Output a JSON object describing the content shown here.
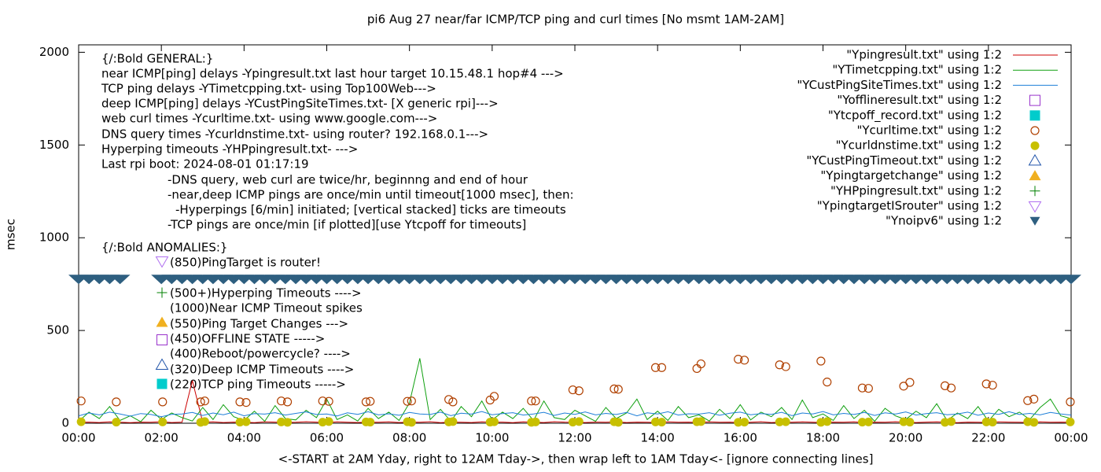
{
  "chart_data": {
    "type": "line",
    "title": "pi6 Aug 27  near/far ICMP/TCP ping and curl times [No msmt 1AM-2AM]",
    "xlabel": "<-START at 2AM Yday, right to 12AM Tday->, then wrap left to 1AM Tday<- [ignore connecting lines]",
    "ylabel": "msec",
    "legend": "upper right",
    "xlim": [
      0,
      24
    ],
    "ylim": [
      0,
      2040
    ],
    "yticks": [
      0,
      500,
      1000,
      1500,
      2000
    ],
    "xticks": [
      {
        "value": 0,
        "label": "00:00"
      },
      {
        "value": 2,
        "label": "02:00"
      },
      {
        "value": 4,
        "label": "04:00"
      },
      {
        "value": 6,
        "label": "06:00"
      },
      {
        "value": 8,
        "label": "08:00"
      },
      {
        "value": 10,
        "label": "10:00"
      },
      {
        "value": 12,
        "label": "12:00"
      },
      {
        "value": 14,
        "label": "14:00"
      },
      {
        "value": 16,
        "label": "16:00"
      },
      {
        "value": 18,
        "label": "18:00"
      },
      {
        "value": 20,
        "label": "20:00"
      },
      {
        "value": 22,
        "label": "22:00"
      },
      {
        "value": 24,
        "label": "00:00"
      }
    ],
    "annotations": [
      "{/:Bold GENERAL:}",
      "near ICMP[ping] delays -Ypingresult.txt last hour target 10.15.48.1 hop#4 --->",
      "TCP ping delays -YTimetcpping.txt- using Top100Web--->",
      "deep ICMP[ping] delays -YCustPingSiteTimes.txt- [X generic rpi]--->",
      "web curl times -Ycurltime.txt- using www.google.com--->",
      "DNS query times -Ycurldnstime.txt- using router? 192.168.0.1--->",
      "Hyperping timeouts -YHPpingresult.txt- --->",
      "Last rpi boot: 2024-08-01 01:17:19",
      "-DNS query, web curl are twice/hr, beginnng and end of hour",
      "-near,deep ICMP pings are once/min until timeout[1000 msec], then:",
      "-Hyperpings [6/min] initiated; [vertical stacked] ticks are timeouts",
      "-TCP pings are once/min [if plotted][use Ytcpoff for timeouts]",
      "{/:Bold ANOMALIES:}",
      "(850)PingTarget is router!",
      "(500+)Hyperping Timeouts ---->",
      "(1000)Near ICMP Timeout spikes",
      "(550)Ping Target Changes --->",
      "(450)OFFLINE STATE ----->",
      "(400)Reboot/powercycle? ---->",
      "(320)Deep ICMP Timeouts ---->",
      "(220)TCP ping Timeouts ----->"
    ],
    "x": [
      0,
      0.25,
      0.5,
      0.75,
      1,
      1.25,
      1.5,
      1.75,
      2,
      2.25,
      2.5,
      2.75,
      3,
      3.25,
      3.5,
      3.75,
      4,
      4.25,
      4.5,
      4.75,
      5,
      5.25,
      5.5,
      5.75,
      6,
      6.25,
      6.5,
      6.75,
      7,
      7.25,
      7.5,
      7.75,
      8,
      8.25,
      8.5,
      8.75,
      9,
      9.25,
      9.5,
      9.75,
      10,
      10.25,
      10.5,
      10.75,
      11,
      11.25,
      11.5,
      11.75,
      12,
      12.25,
      12.5,
      12.75,
      13,
      13.25,
      13.5,
      13.75,
      14,
      14.25,
      14.5,
      14.75,
      15,
      15.25,
      15.5,
      15.75,
      16,
      16.25,
      16.5,
      16.75,
      17,
      17.25,
      17.5,
      17.75,
      18,
      18.25,
      18.5,
      18.75,
      19,
      19.25,
      19.5,
      19.75,
      20,
      20.25,
      20.5,
      20.75,
      21,
      21.25,
      21.5,
      21.75,
      22,
      22.25,
      22.5,
      22.75,
      23,
      23.25,
      23.5,
      23.75,
      24
    ],
    "series": [
      {
        "name": "\"Ypingresult.txt\" using 1:2",
        "color": "#cc0000",
        "marker": "line",
        "values": [
          5,
          6,
          4,
          7,
          5,
          3,
          6,
          5,
          8,
          4,
          6,
          230,
          5,
          7,
          4,
          6,
          5,
          3,
          7,
          6,
          4,
          5,
          8,
          6,
          3,
          7,
          5,
          4,
          6,
          5,
          7,
          4,
          6,
          5,
          8,
          3,
          6,
          5,
          4,
          7,
          5,
          6,
          3,
          7,
          5,
          4,
          8,
          6,
          5,
          4,
          6,
          5,
          7,
          4,
          6,
          5,
          3,
          7,
          5,
          6,
          4,
          7,
          5,
          6,
          3,
          5,
          8,
          4,
          6,
          5,
          7,
          5,
          4,
          6,
          5,
          7,
          3,
          6,
          5,
          8,
          5,
          4,
          6,
          7,
          5,
          3,
          6,
          5,
          4,
          7,
          6,
          5,
          4,
          7,
          5,
          6,
          5
        ]
      },
      {
        "name": "\"YTimetcpping.txt\" using 1:2",
        "color": "#10a010",
        "marker": "line",
        "values": [
          10,
          60,
          25,
          90,
          15,
          40,
          8,
          70,
          20,
          55,
          30,
          12,
          85,
          20,
          100,
          35,
          15,
          65,
          10,
          95,
          25,
          18,
          70,
          30,
          130,
          20,
          45,
          12,
          80,
          25,
          60,
          15,
          110,
          350,
          20,
          75,
          10,
          90,
          35,
          120,
          18,
          60,
          25,
          80,
          15,
          120,
          30,
          20,
          70,
          40,
          10,
          85,
          25,
          55,
          130,
          20,
          65,
          15,
          90,
          30,
          45,
          12,
          75,
          25,
          100,
          18,
          60,
          35,
          85,
          20,
          125,
          30,
          50,
          15,
          95,
          25,
          70,
          10,
          80,
          40,
          20,
          65,
          30,
          105,
          15,
          55,
          25,
          90,
          12,
          75,
          35,
          60,
          20,
          85,
          130,
          40,
          25
        ]
      },
      {
        "name": "\"YCustPingSiteTimes.txt\" using 1:2",
        "color": "#1e7fd8",
        "marker": "line",
        "values": [
          40,
          55,
          45,
          60,
          50,
          38,
          52,
          47,
          35,
          48,
          50,
          58,
          42,
          55,
          46,
          60,
          40,
          52,
          49,
          57,
          44,
          53,
          61,
          47,
          50,
          39,
          56,
          48,
          62,
          45,
          51,
          43,
          58,
          50,
          47,
          60,
          41,
          54,
          49,
          63,
          46,
          52,
          57,
          44,
          50,
          59,
          42,
          55,
          48,
          61,
          45,
          53,
          47,
          58,
          40,
          56,
          50,
          62,
          44,
          51,
          49,
          57,
          43,
          54,
          60,
          46,
          52,
          48,
          59,
          41,
          55,
          50,
          63,
          45,
          53,
          47,
          58,
          42,
          56,
          49,
          61,
          44,
          52,
          57,
          46,
          50,
          60,
          43,
          55,
          48,
          62,
          47,
          53,
          45,
          58,
          50,
          44
        ]
      },
      {
        "name": "\"Yofflineresult.txt\" using 1:2",
        "color": "#9933cc",
        "marker": "open-square",
        "x": [],
        "values": []
      },
      {
        "name": "\"Ytcpoff_record.txt\" using 1:2",
        "color": "#00cccc",
        "marker": "filled-square",
        "x": [],
        "values": []
      },
      {
        "name": "\"Ycurltime.txt\" using 1:2",
        "color": "#b04000",
        "marker": "open-circle",
        "x": [
          0.06,
          0.91,
          2.03,
          2.95,
          3.05,
          3.9,
          4.05,
          4.9,
          5.05,
          5.9,
          6.05,
          6.95,
          7.05,
          7.95,
          8.05,
          8.95,
          9.05,
          9.95,
          10.05,
          10.95,
          11.05,
          11.95,
          12.1,
          12.95,
          13.05,
          13.95,
          14.1,
          14.95,
          15.05,
          15.95,
          16.1,
          16.95,
          17.1,
          17.95,
          18.1,
          18.95,
          19.1,
          19.95,
          20.1,
          20.95,
          21.1,
          21.95,
          22.1,
          22.95,
          23.1,
          23.98
        ],
        "values": [
          120,
          115,
          115,
          115,
          120,
          115,
          112,
          120,
          115,
          120,
          118,
          115,
          118,
          118,
          120,
          128,
          115,
          125,
          145,
          120,
          120,
          180,
          175,
          185,
          183,
          300,
          300,
          295,
          320,
          345,
          340,
          315,
          305,
          335,
          222,
          190,
          188,
          200,
          220,
          202,
          190,
          212,
          205,
          122,
          130,
          115
        ]
      },
      {
        "name": "\"Ycurldnstime.txt\" using 1:2",
        "color": "#c8c000",
        "marker": "filled-circle",
        "x": [
          0.06,
          0.91,
          2.03,
          2.95,
          3.05,
          3.9,
          4.05,
          4.9,
          5.05,
          5.9,
          6.05,
          6.95,
          7.05,
          7.95,
          8.05,
          8.95,
          9.05,
          9.95,
          10.05,
          10.95,
          11.05,
          11.95,
          12.1,
          12.95,
          13.05,
          13.95,
          14.1,
          14.95,
          15.05,
          15.95,
          16.1,
          16.95,
          17.1,
          17.95,
          18.1,
          18.95,
          19.1,
          19.95,
          20.1,
          20.95,
          21.1,
          21.95,
          22.1,
          22.95,
          23.1,
          23.98
        ],
        "values": [
          8,
          6,
          7,
          5,
          9,
          6,
          8,
          7,
          5,
          6,
          9,
          7,
          6,
          8,
          5,
          7,
          9,
          6,
          8,
          5,
          7,
          6,
          9,
          8,
          5,
          7,
          6,
          8,
          9,
          5,
          6,
          7,
          8,
          5,
          9,
          6,
          7,
          8,
          6,
          5,
          9,
          7,
          6,
          8,
          5,
          7
        ]
      },
      {
        "name": "\"YCustPingTimeout.txt\" using 1:2",
        "color": "#2255aa",
        "marker": "open-triangle-up",
        "x": [],
        "values": []
      },
      {
        "name": "\"Ypingtargetchange\" using 1:2",
        "color": "#f0b020",
        "marker": "filled-triangle-up",
        "x": [],
        "values": []
      },
      {
        "name": "\"YHPpingresult.txt\" using 1:2",
        "color": "#008000",
        "marker": "plus",
        "x": [],
        "values": []
      },
      {
        "name": "\"YpingtargetISrouter\" using 1:2",
        "color": "#b070f0",
        "marker": "open-triangle-down",
        "x": [],
        "values": []
      },
      {
        "name": "\"Ynoipv6\" using 1:2",
        "color": "#2e5f80",
        "marker": "filled-triangle-down",
        "x": [
          0,
          0.25,
          0.5,
          0.75,
          1,
          2,
          2.25,
          2.5,
          2.75,
          3,
          3.25,
          3.5,
          3.75,
          4,
          4.25,
          4.5,
          4.75,
          5,
          5.25,
          5.5,
          5.75,
          6,
          6.25,
          6.5,
          6.75,
          7,
          7.25,
          7.5,
          7.75,
          8,
          8.25,
          8.5,
          8.75,
          9,
          9.25,
          9.5,
          9.75,
          10,
          10.25,
          10.5,
          10.75,
          11,
          11.25,
          11.5,
          11.75,
          12,
          12.25,
          12.5,
          12.75,
          13,
          13.25,
          13.5,
          13.75,
          14,
          14.25,
          14.5,
          14.75,
          15,
          15.25,
          15.5,
          15.75,
          16,
          16.25,
          16.5,
          16.75,
          17,
          17.25,
          17.5,
          17.75,
          18,
          18.25,
          18.5,
          18.75,
          19,
          19.25,
          19.5,
          19.75,
          20,
          20.25,
          20.5,
          20.75,
          21,
          21.25,
          21.5,
          21.75,
          22,
          22.25,
          22.5,
          22.75,
          23,
          23.25,
          23.5,
          23.75,
          24
        ],
        "values": [
          775,
          775,
          775,
          775,
          775,
          775,
          775,
          775,
          775,
          775,
          775,
          775,
          775,
          775,
          775,
          775,
          775,
          775,
          775,
          775,
          775,
          775,
          775,
          775,
          775,
          775,
          775,
          775,
          775,
          775,
          775,
          775,
          775,
          775,
          775,
          775,
          775,
          775,
          775,
          775,
          775,
          775,
          775,
          775,
          775,
          775,
          775,
          775,
          775,
          775,
          775,
          775,
          775,
          775,
          775,
          775,
          775,
          775,
          775,
          775,
          775,
          775,
          775,
          775,
          775,
          775,
          775,
          775,
          775,
          775,
          775,
          775,
          775,
          775,
          775,
          775,
          775,
          775,
          775,
          775,
          775,
          775,
          775,
          775,
          775,
          775,
          775,
          775,
          775,
          775,
          775,
          775,
          775,
          775
        ]
      }
    ]
  }
}
